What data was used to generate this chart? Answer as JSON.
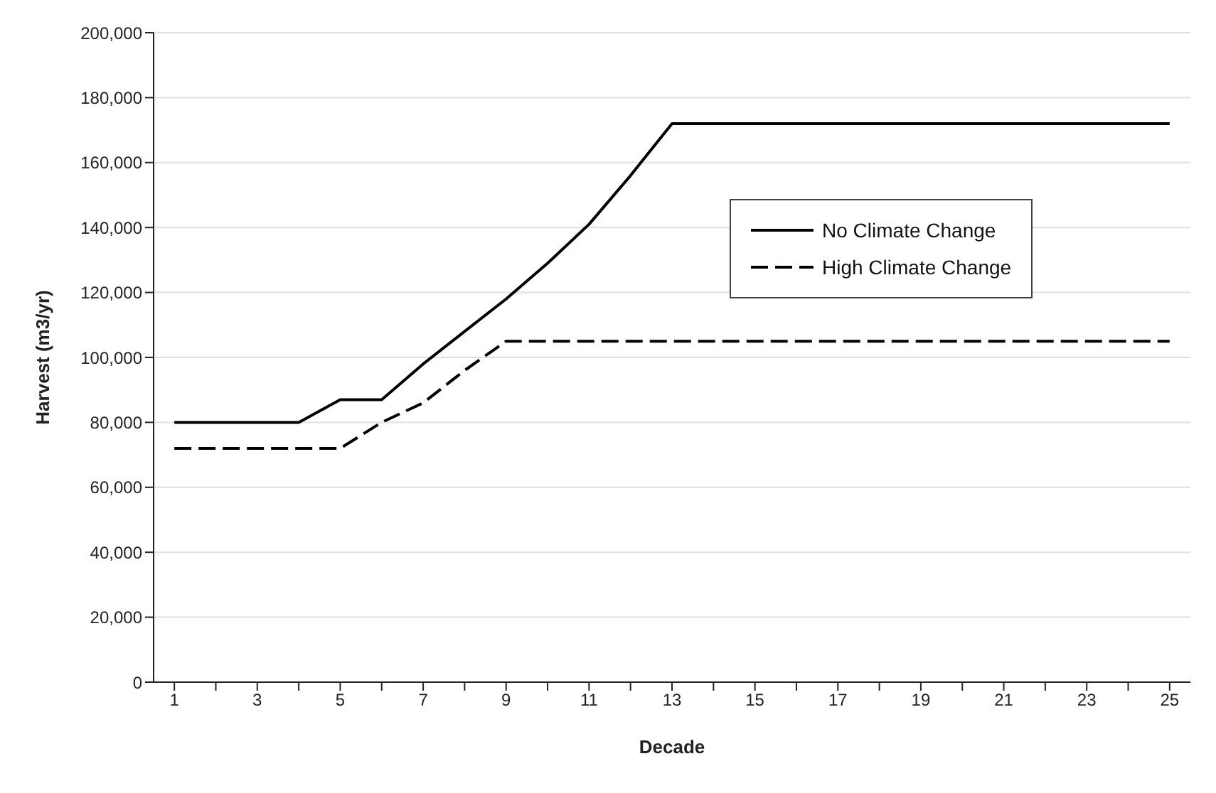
{
  "chart_data": {
    "type": "line",
    "xlabel": "Decade",
    "ylabel": "Harvest (m3/yr)",
    "x": [
      1,
      2,
      3,
      4,
      5,
      6,
      7,
      8,
      9,
      10,
      11,
      12,
      13,
      14,
      15,
      16,
      17,
      18,
      19,
      20,
      21,
      22,
      23,
      24,
      25
    ],
    "xlim": [
      0.5,
      25.5
    ],
    "xticks": [
      1,
      {
        "value": 2,
        "label": null
      },
      3,
      {
        "value": 4,
        "label": null
      },
      5,
      {
        "value": 6,
        "label": null
      },
      7,
      {
        "value": 8,
        "label": null
      },
      9,
      {
        "value": 10,
        "label": null
      },
      11,
      {
        "value": 12,
        "label": null
      },
      13,
      {
        "value": 14,
        "label": null
      },
      15,
      {
        "value": 16,
        "label": null
      },
      17,
      {
        "value": 18,
        "label": null
      },
      19,
      {
        "value": 20,
        "label": null
      },
      21,
      {
        "value": 22,
        "label": null
      },
      23,
      {
        "value": 24,
        "label": null
      },
      25
    ],
    "series": [
      {
        "name": "No Climate Change",
        "color": "#000000",
        "line_style": "solid",
        "values": [
          80000,
          80000,
          80000,
          80000,
          87000,
          87000,
          98000,
          108000,
          118000,
          129000,
          141000,
          156000,
          172000,
          172000,
          172000,
          172000,
          172000,
          172000,
          172000,
          172000,
          172000,
          172000,
          172000,
          172000,
          172000
        ]
      },
      {
        "name": "High Climate Change",
        "color": "#000000",
        "line_style": "dashed",
        "values": [
          72000,
          72000,
          72000,
          72000,
          72000,
          80000,
          86000,
          96000,
          105000,
          105000,
          105000,
          105000,
          105000,
          105000,
          105000,
          105000,
          105000,
          105000,
          105000,
          105000,
          105000,
          105000,
          105000,
          105000,
          105000
        ]
      }
    ],
    "ylim": [
      0,
      200000
    ],
    "yticks": [
      0,
      {
        "value": 20000,
        "label": "20,000"
      },
      {
        "value": 40000,
        "label": "40,000"
      },
      {
        "value": 60000,
        "label": "60,000"
      },
      {
        "value": 80000,
        "label": "80,000"
      },
      {
        "value": 100000,
        "label": "100,000"
      },
      {
        "value": 120000,
        "label": "120,000"
      },
      {
        "value": 140000,
        "label": "140,000"
      },
      {
        "value": 160000,
        "label": "160,000"
      },
      {
        "value": 180000,
        "label": "180,000"
      },
      {
        "value": 200000,
        "label": "200,000"
      }
    ],
    "grid": "y",
    "legend": "top right",
    "marker": "none"
  }
}
